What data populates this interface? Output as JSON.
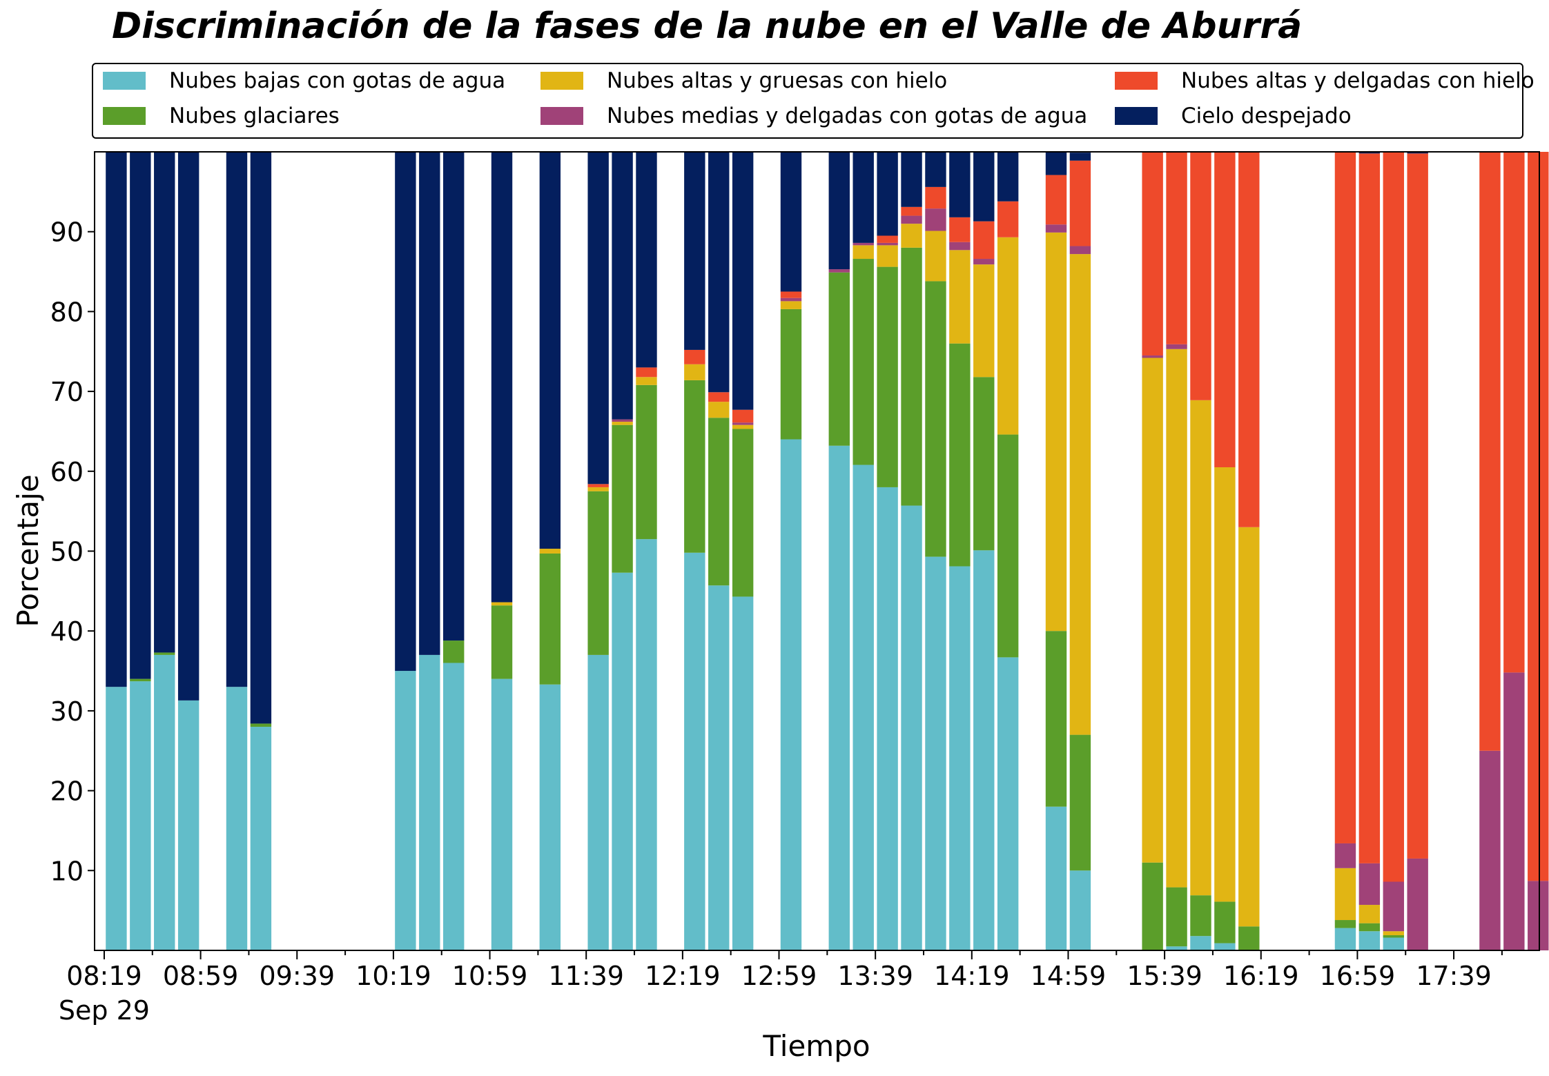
{
  "title": "Discriminación de la fases de la nube en el Valle de Aburrá",
  "chart_data": {
    "type": "bar",
    "stacked": true,
    "title": "Discriminación de la fases de la nube en el Valle de Aburrá",
    "xlabel": "Tiempo",
    "ylabel": "Porcentaje",
    "ylim": [
      0,
      100
    ],
    "yticks": [
      10,
      20,
      30,
      40,
      50,
      60,
      70,
      80,
      90
    ],
    "x_tick_labels": [
      "08:19",
      "08:59",
      "09:39",
      "10:19",
      "10:59",
      "11:39",
      "12:19",
      "12:59",
      "13:39",
      "14:19",
      "14:59",
      "15:39",
      "16:19",
      "16:59",
      "17:39"
    ],
    "x_date_label": "Sep 29",
    "x_start": "08:19",
    "x_step_minutes": 10,
    "legend_position": "top",
    "grid": false,
    "times": [
      "08:19",
      "08:29",
      "08:39",
      "08:49",
      "09:09",
      "09:19",
      "10:19",
      "10:29",
      "10:39",
      "10:59",
      "11:19",
      "11:39",
      "11:49",
      "11:59",
      "12:19",
      "12:29",
      "12:39",
      "12:59",
      "13:19",
      "13:29",
      "13:39",
      "13:49",
      "13:59",
      "14:09",
      "14:19",
      "14:29",
      "14:49",
      "14:59",
      "15:29",
      "15:39",
      "15:49",
      "15:59",
      "16:09",
      "16:49",
      "16:59",
      "17:09",
      "17:19",
      "17:49",
      "17:59",
      "18:09"
    ],
    "series": [
      {
        "name": "Nubes bajas con gotas de agua",
        "color": "#62bdc9",
        "values": [
          33,
          33.7,
          37,
          31.3,
          33,
          28,
          35,
          37,
          36,
          34,
          33.3,
          37,
          47.3,
          51.5,
          49.8,
          45.7,
          44.3,
          64,
          63.2,
          60.8,
          58,
          55.7,
          49.3,
          48.1,
          50.1,
          36.7,
          18,
          10,
          0,
          0.5,
          1.8,
          0.9,
          0,
          2.8,
          2.4,
          1.6,
          0,
          0,
          0,
          0
        ]
      },
      {
        "name": "Nubes glaciares",
        "color": "#5b9e2a",
        "values": [
          0,
          0.3,
          0.3,
          0,
          0,
          0.4,
          0,
          0,
          2.8,
          9.2,
          16.4,
          20.5,
          18.5,
          19.3,
          21.6,
          21,
          21,
          16.3,
          21.7,
          25.8,
          27.6,
          32.3,
          34.5,
          27.9,
          21.7,
          27.9,
          22,
          17,
          11,
          7.4,
          5.1,
          5.2,
          3,
          1,
          1,
          0.3,
          0,
          0,
          0,
          0
        ]
      },
      {
        "name": "Nubes altas y gruesas con hielo",
        "color": "#e1b514",
        "values": [
          0,
          0,
          0,
          0,
          0,
          0,
          0,
          0,
          0,
          0.4,
          0.6,
          0.5,
          0.4,
          1,
          2,
          2,
          0.5,
          1,
          0,
          1.7,
          2.7,
          3,
          6.3,
          11.7,
          14.1,
          24.7,
          49.9,
          60.2,
          63.2,
          67.4,
          62,
          54.4,
          50,
          6.5,
          2.3,
          0.5,
          0,
          0,
          0,
          0
        ]
      },
      {
        "name": "Nubes medias y delgadas con gotas de agua",
        "color": "#a04278",
        "values": [
          0,
          0,
          0,
          0,
          0,
          0,
          0,
          0,
          0,
          0,
          0,
          0,
          0.3,
          0,
          0,
          0,
          0.3,
          0.4,
          0.4,
          0.3,
          0.3,
          1,
          2.8,
          1,
          0.7,
          0,
          1,
          1,
          0.3,
          0.6,
          0,
          0,
          0,
          3.1,
          5.2,
          6.2,
          11.5,
          25,
          34.8,
          8.7
        ]
      },
      {
        "name": "Nubes altas y delgadas con hielo",
        "color": "#ee4a2b",
        "values": [
          0,
          0,
          0,
          0,
          0,
          0,
          0,
          0,
          0,
          0,
          0,
          0.4,
          0,
          1.2,
          1.8,
          1.2,
          1.6,
          0.8,
          0,
          0,
          0.9,
          1.1,
          2.7,
          3.1,
          4.7,
          4.5,
          6.2,
          10.7,
          25.5,
          24.1,
          31.2,
          39.5,
          47,
          86.6,
          88.9,
          91.4,
          88.3,
          75,
          65.2,
          91.3
        ]
      },
      {
        "name": "Cielo despejado",
        "color": "#041f5e",
        "values": [
          67,
          66,
          62.7,
          68.7,
          67,
          71.6,
          65,
          63,
          61.2,
          56.4,
          49.7,
          41.6,
          33.5,
          27,
          24.8,
          30.1,
          32.3,
          17.5,
          14.7,
          11.4,
          10.5,
          7.6,
          4.4,
          8.2,
          8.7,
          6.2,
          3,
          1,
          0,
          0,
          0,
          0,
          0,
          0.3,
          0.2,
          0.5,
          0.2,
          0,
          0,
          0
        ]
      }
    ]
  }
}
